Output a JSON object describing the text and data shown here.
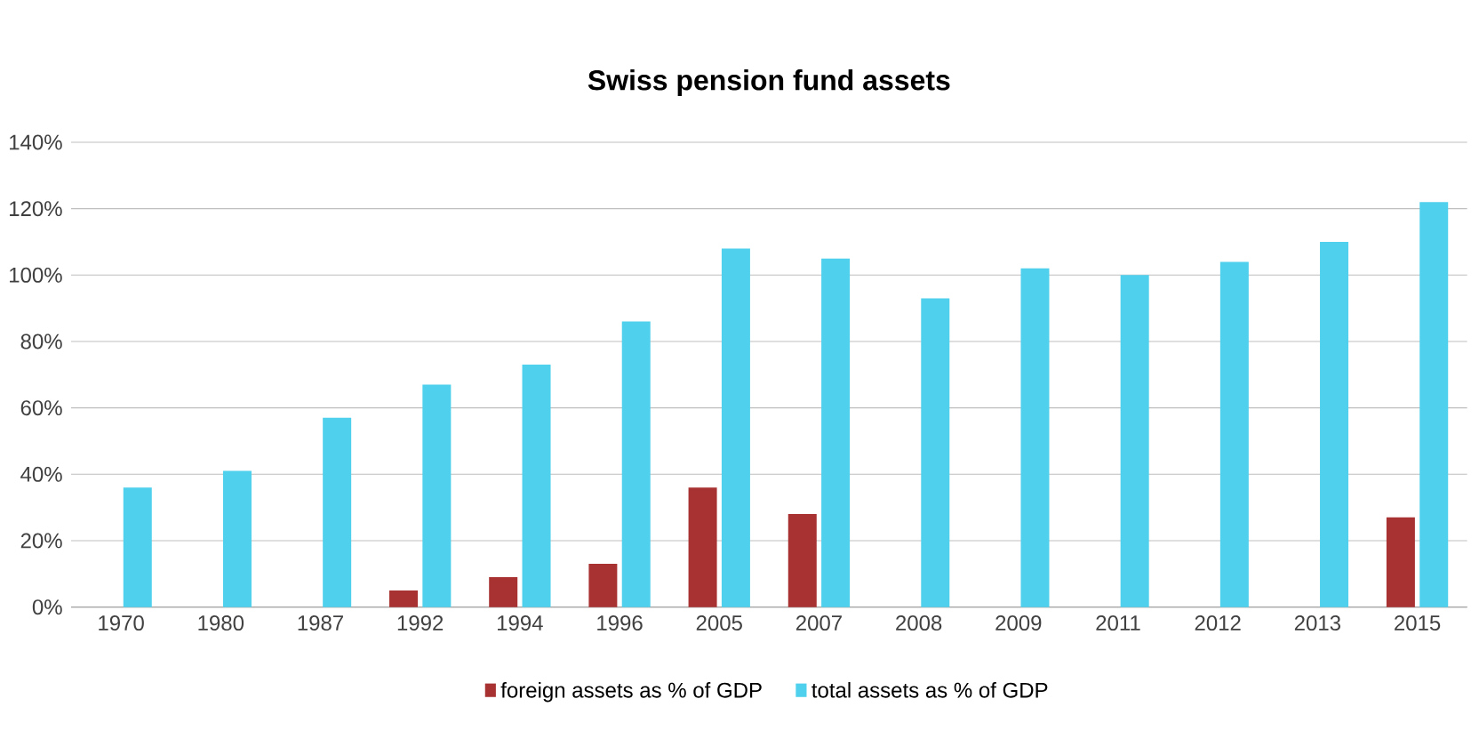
{
  "chart_data": {
    "type": "bar",
    "title": "Swiss pension fund assets",
    "categories": [
      "1970",
      "1980",
      "1987",
      "1992",
      "1994",
      "1996",
      "2005",
      "2007",
      "2008",
      "2009",
      "2011",
      "2012",
      "2013",
      "2015"
    ],
    "series": [
      {
        "name": "foreign assets as % of GDP",
        "color": "#a83232",
        "values": [
          null,
          null,
          null,
          5,
          9,
          13,
          36,
          28,
          null,
          null,
          null,
          null,
          null,
          27
        ]
      },
      {
        "name": "total assets as % of GDP",
        "color": "#4fd0ec",
        "values": [
          36,
          41,
          57,
          67,
          73,
          86,
          108,
          105,
          93,
          102,
          100,
          104,
          110,
          122
        ]
      }
    ],
    "ylim": [
      0,
      140
    ],
    "yticks": [
      {
        "value": 0,
        "label": "0%"
      },
      {
        "value": 20,
        "label": "20%"
      },
      {
        "value": 40,
        "label": "40%"
      },
      {
        "value": 60,
        "label": "60%"
      },
      {
        "value": 80,
        "label": "80%"
      },
      {
        "value": 100,
        "label": "100%"
      },
      {
        "value": 120,
        "label": "120%"
      },
      {
        "value": 140,
        "label": "140%"
      }
    ],
    "grid": "y",
    "legend": "bottom"
  }
}
